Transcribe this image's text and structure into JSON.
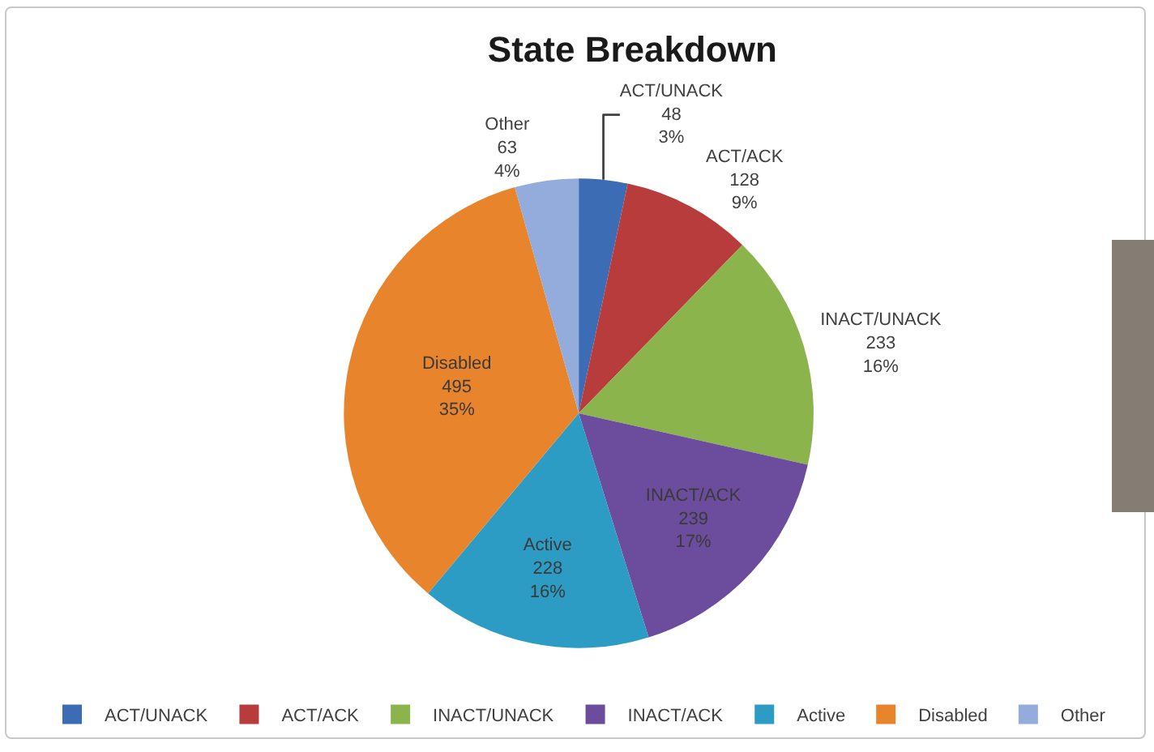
{
  "chart_data": {
    "type": "pie",
    "title": "State Breakdown",
    "categories": [
      "ACT/UNACK",
      "ACT/ACK",
      "INACT/UNACK",
      "INACT/ACK",
      "Active",
      "Disabled",
      "Other"
    ],
    "values": [
      48,
      128,
      233,
      239,
      228,
      495,
      63
    ],
    "value_labels": [
      "48\n3%",
      "128\n9%",
      "233\n16%",
      "239\n17%",
      "228\n16%",
      "495\n35%",
      "63\n4%"
    ],
    "colors": [
      "#3c6cb4",
      "#b83c3c",
      "#8cb44c",
      "#6c4c9c",
      "#2c9cc4",
      "#e8842c",
      "#94acdc"
    ],
    "legend": "bottom"
  }
}
